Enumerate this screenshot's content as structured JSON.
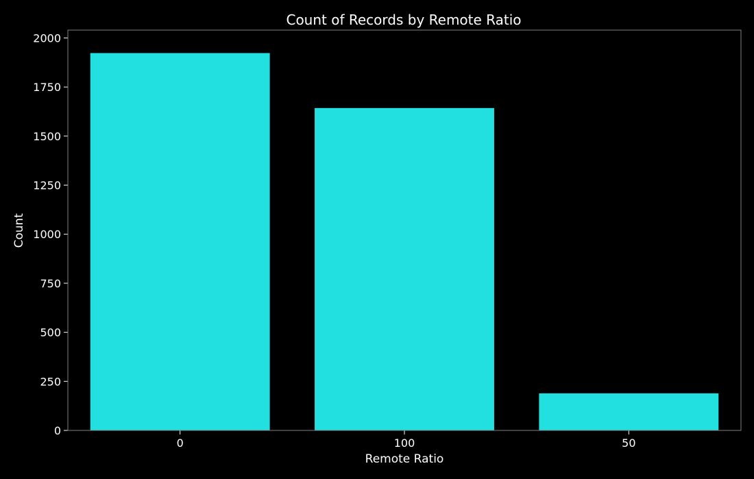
{
  "chart_data": {
    "type": "bar",
    "title": "Count of Records by Remote Ratio",
    "xlabel": "Remote Ratio",
    "ylabel": "Count",
    "categories": [
      "0",
      "100",
      "50"
    ],
    "values": [
      1923,
      1643,
      189
    ],
    "ylim": [
      0,
      2040
    ],
    "yticks": [
      0,
      250,
      500,
      750,
      1000,
      1250,
      1500,
      1750,
      2000
    ],
    "grid": false,
    "legend": null
  },
  "colors": {
    "background": "#000000",
    "bar": "#22e0e0",
    "axis": "#7f7f7f",
    "text": "#ffffff"
  }
}
